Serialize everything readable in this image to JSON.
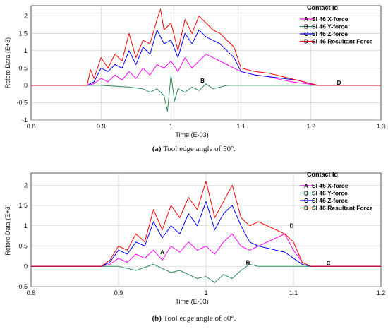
{
  "chart_data": [
    {
      "type": "line",
      "caption_label": "(a)",
      "caption_text": "Tool edge angle of 50°.",
      "xlabel": "Time (E-03)",
      "ylabel": "Rcforc Data (E+3)",
      "xlim": [
        0.8,
        1.3
      ],
      "ylim": [
        -1,
        2.3
      ],
      "xticks": [
        "0.8",
        "0.9",
        "1",
        "1.1",
        "1.2",
        "1.3"
      ],
      "yticks": [
        "-1",
        "-0.5",
        "0",
        "0.5",
        "1",
        "1.5",
        "2"
      ],
      "grid": true,
      "legend_title": "Contact Id",
      "legend_position": "top-right",
      "series": [
        {
          "letter": "A",
          "name": "SI 46 X-force",
          "color": "#ff00ff",
          "x": [
            0.8,
            0.88,
            0.89,
            0.9,
            0.91,
            0.92,
            0.93,
            0.94,
            0.95,
            0.96,
            0.97,
            0.98,
            0.99,
            1.0,
            1.01,
            1.02,
            1.03,
            1.04,
            1.05,
            1.06,
            1.07,
            1.08,
            1.09,
            1.1,
            1.12,
            1.14,
            1.16,
            1.18,
            1.2,
            1.21,
            1.3
          ],
          "y": [
            0,
            0,
            0.05,
            0.2,
            0.1,
            0.3,
            0.15,
            0.4,
            0.2,
            0.5,
            0.3,
            0.6,
            0.5,
            0.7,
            0.4,
            0.8,
            0.5,
            0.7,
            0.9,
            0.8,
            0.7,
            0.6,
            0.5,
            0.4,
            0.3,
            0.25,
            0.15,
            0.08,
            0.03,
            0,
            0
          ]
        },
        {
          "letter": "B",
          "name": "SI 46 Y-force",
          "color": "#2e8b57",
          "x": [
            0.8,
            0.9,
            0.94,
            0.96,
            0.97,
            0.98,
            0.99,
            0.995,
            1.0,
            1.005,
            1.01,
            1.02,
            1.03,
            1.04,
            1.05,
            1.06,
            1.08,
            1.1,
            1.3
          ],
          "y": [
            0,
            0,
            -0.05,
            -0.1,
            -0.2,
            -0.1,
            -0.3,
            -0.75,
            0.3,
            -0.45,
            -0.1,
            -0.2,
            -0.05,
            -0.15,
            0.05,
            -0.1,
            0,
            0,
            0
          ]
        },
        {
          "letter": "C",
          "name": "SI 46 Z-force",
          "color": "#0000ff",
          "x": [
            0.8,
            0.88,
            0.89,
            0.9,
            0.91,
            0.92,
            0.93,
            0.94,
            0.95,
            0.96,
            0.97,
            0.98,
            0.99,
            1.0,
            1.01,
            1.02,
            1.03,
            1.04,
            1.05,
            1.06,
            1.07,
            1.08,
            1.09,
            1.1,
            1.12,
            1.14,
            1.16,
            1.18,
            1.2,
            1.21,
            1.3
          ],
          "y": [
            0,
            0,
            0.1,
            0.5,
            0.4,
            0.6,
            0.5,
            1.0,
            0.6,
            1.1,
            0.9,
            1.6,
            1.2,
            1.3,
            0.8,
            1.5,
            1.2,
            1.6,
            1.4,
            1.3,
            1.2,
            1.0,
            0.8,
            0.4,
            0.3,
            0.25,
            0.2,
            0.15,
            0.05,
            0,
            0
          ]
        },
        {
          "letter": "D",
          "name": "SI 46 Resultant Force",
          "color": "#ff0000",
          "x": [
            0.8,
            0.88,
            0.885,
            0.89,
            0.9,
            0.91,
            0.92,
            0.93,
            0.94,
            0.95,
            0.96,
            0.97,
            0.98,
            0.985,
            0.99,
            1.0,
            1.01,
            1.02,
            1.03,
            1.04,
            1.05,
            1.06,
            1.07,
            1.08,
            1.09,
            1.1,
            1.12,
            1.14,
            1.16,
            1.18,
            1.2,
            1.21,
            1.3
          ],
          "y": [
            0,
            0,
            0.45,
            0.2,
            0.8,
            0.5,
            0.9,
            0.7,
            1.5,
            0.8,
            1.3,
            1.2,
            1.9,
            2.2,
            1.6,
            1.8,
            1.0,
            1.9,
            1.5,
            2.0,
            1.8,
            1.6,
            1.5,
            1.3,
            1.1,
            0.5,
            0.4,
            0.35,
            0.25,
            0.15,
            0.05,
            0,
            0
          ]
        }
      ],
      "markers": [
        {
          "letter": "B",
          "x": 1.045,
          "y": 0.08
        },
        {
          "letter": "D",
          "x": 1.24,
          "y": 0.02
        }
      ]
    },
    {
      "type": "line",
      "caption_label": "(b)",
      "caption_text": "Tool edge angle of 60°.",
      "xlabel": "Time (E-03)",
      "ylabel": "Rcforc Data (E+3)",
      "xlim": [
        0.8,
        1.2
      ],
      "ylim": [
        -0.5,
        2.3
      ],
      "xticks": [
        "0.8",
        "0.9",
        "1",
        "1.1",
        "1.2"
      ],
      "yticks": [
        "-0.5",
        "0",
        "0.5",
        "1",
        "1.5",
        "2"
      ],
      "grid": true,
      "legend_title": "Contact Id",
      "legend_position": "top-right",
      "series": [
        {
          "letter": "A",
          "name": "SI 46 X-force",
          "color": "#ff00ff",
          "x": [
            0.8,
            0.88,
            0.89,
            0.9,
            0.91,
            0.92,
            0.93,
            0.94,
            0.95,
            0.96,
            0.97,
            0.98,
            0.99,
            1.0,
            1.01,
            1.02,
            1.03,
            1.04,
            1.05,
            1.06,
            1.07,
            1.08,
            1.09,
            1.1,
            1.11,
            1.12,
            1.2
          ],
          "y": [
            0,
            0,
            0.05,
            0.2,
            0.1,
            0.3,
            0.2,
            0.4,
            0.15,
            0.5,
            0.35,
            0.6,
            0.4,
            0.5,
            0.3,
            0.6,
            0.8,
            0.5,
            0.4,
            0.5,
            0.6,
            0.7,
            0.8,
            0.4,
            0.1,
            0,
            0
          ]
        },
        {
          "letter": "B",
          "name": "SI 46 Y-force",
          "color": "#2e8b57",
          "x": [
            0.8,
            0.9,
            0.92,
            0.94,
            0.96,
            0.97,
            0.98,
            0.99,
            1.0,
            1.01,
            1.02,
            1.03,
            1.04,
            1.05,
            1.06,
            1.2
          ],
          "y": [
            0,
            0,
            -0.1,
            0.05,
            -0.15,
            -0.1,
            -0.2,
            -0.3,
            -0.25,
            -0.4,
            -0.2,
            -0.3,
            -0.1,
            0.05,
            0,
            0
          ]
        },
        {
          "letter": "C",
          "name": "SI 46 Z-force",
          "color": "#0000ff",
          "x": [
            0.8,
            0.88,
            0.89,
            0.9,
            0.91,
            0.92,
            0.93,
            0.94,
            0.95,
            0.96,
            0.97,
            0.98,
            0.99,
            1.0,
            1.01,
            1.02,
            1.03,
            1.04,
            1.05,
            1.06,
            1.07,
            1.08,
            1.09,
            1.1,
            1.11,
            1.12,
            1.2
          ],
          "y": [
            0,
            0,
            0.1,
            0.4,
            0.3,
            0.6,
            0.5,
            1.1,
            0.7,
            1.0,
            0.8,
            1.3,
            1.0,
            1.6,
            0.9,
            1.3,
            1.5,
            1.0,
            0.6,
            0.5,
            0.45,
            0.4,
            0.35,
            0.2,
            0.05,
            0,
            0
          ]
        },
        {
          "letter": "D",
          "name": "SI 46 Resultant Force",
          "color": "#ff0000",
          "x": [
            0.8,
            0.88,
            0.89,
            0.9,
            0.91,
            0.92,
            0.93,
            0.94,
            0.95,
            0.96,
            0.97,
            0.98,
            0.99,
            1.0,
            1.01,
            1.02,
            1.03,
            1.04,
            1.05,
            1.06,
            1.07,
            1.08,
            1.09,
            1.1,
            1.11,
            1.12,
            1.2
          ],
          "y": [
            0,
            0,
            0.15,
            0.5,
            0.4,
            0.8,
            0.6,
            1.4,
            0.9,
            1.5,
            1.2,
            1.7,
            1.4,
            2.1,
            1.2,
            1.6,
            2.0,
            1.2,
            1.0,
            1.1,
            1.0,
            0.9,
            0.8,
            0.6,
            0.1,
            0,
            0
          ]
        }
      ],
      "markers": [
        {
          "letter": "A",
          "x": 0.95,
          "y": 0.3
        },
        {
          "letter": "B",
          "x": 1.048,
          "y": 0.05
        },
        {
          "letter": "C",
          "x": 1.14,
          "y": 0.03
        },
        {
          "letter": "D",
          "x": 1.098,
          "y": 0.95
        }
      ]
    }
  ]
}
